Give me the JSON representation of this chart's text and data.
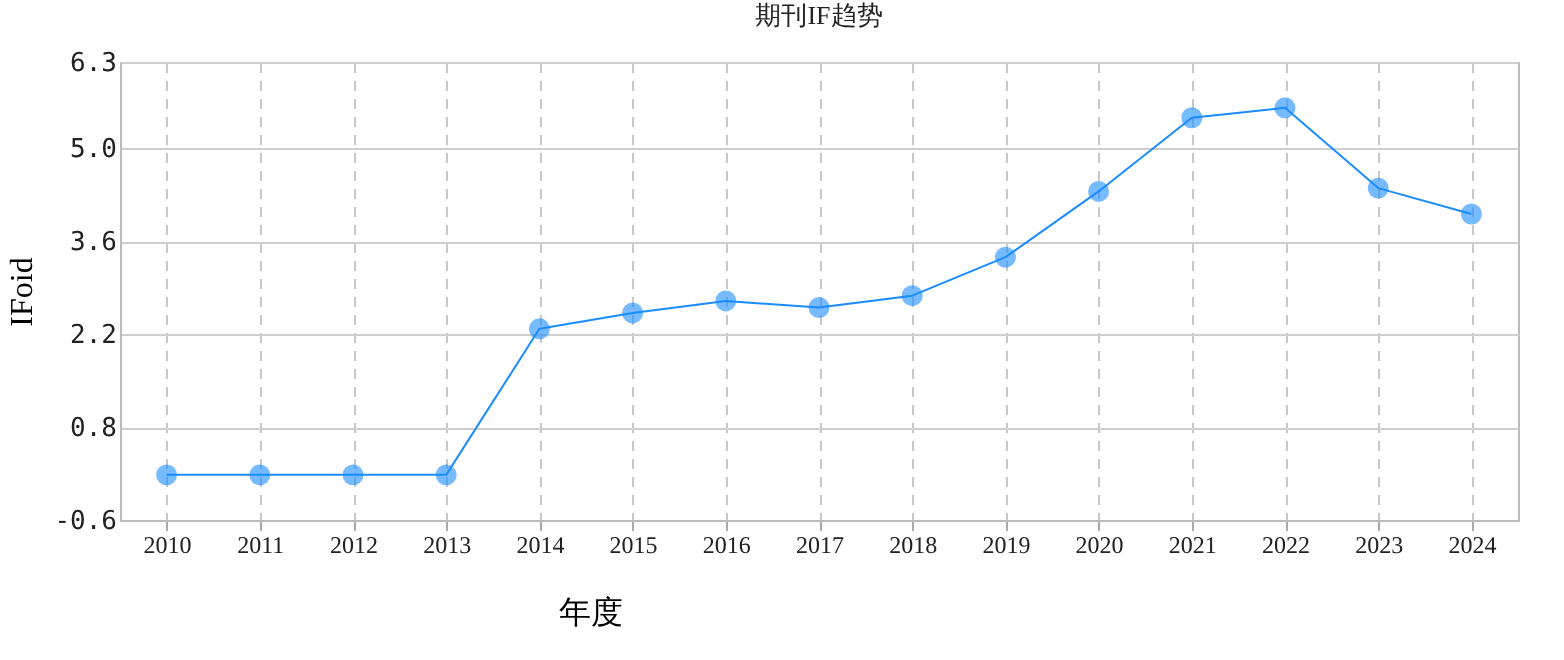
{
  "chart_data": {
    "type": "line",
    "title": "期刊IF趋势",
    "xlabel": "年度",
    "ylabel": "IFoid",
    "categories": [
      "2010",
      "2011",
      "2012",
      "2013",
      "2014",
      "2015",
      "2016",
      "2017",
      "2018",
      "2019",
      "2020",
      "2021",
      "2022",
      "2023",
      "2024"
    ],
    "series": [
      {
        "color": "#1a8cff",
        "values": [
          0.08,
          0.08,
          0.08,
          0.08,
          2.28,
          2.52,
          2.7,
          2.6,
          2.78,
          3.36,
          4.35,
          5.46,
          5.61,
          4.4,
          4.01
        ]
      }
    ],
    "ylim": [
      -0.6,
      6.3
    ],
    "yticks": [
      -0.6,
      0.8,
      2.2,
      3.6,
      {
        "value": 5,
        "label": "5.0"
      },
      6.3
    ],
    "grid": true,
    "marker": "circle",
    "line_style": "solid"
  }
}
